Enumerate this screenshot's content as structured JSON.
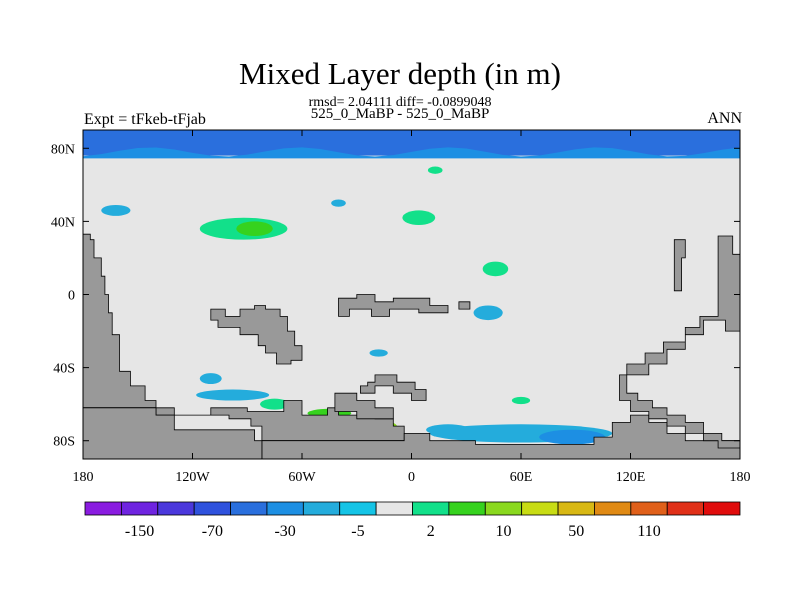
{
  "chart_data": {
    "type": "heatmap",
    "title": "Mixed Layer depth (in m)",
    "stats_line": "rmsd= 2.04111 diff= -0.0899048",
    "subtitle": "525_0_MaBP - 525_0_MaBP",
    "left_label": "Expt = tFkeb-tFjab",
    "right_label": "ANN",
    "xlim": [
      -180,
      180
    ],
    "ylim": [
      -90,
      90
    ],
    "x_ticks": [
      {
        "value": -180,
        "label": "180"
      },
      {
        "value": -120,
        "label": "120W"
      },
      {
        "value": -60,
        "label": "60W"
      },
      {
        "value": 0,
        "label": "0"
      },
      {
        "value": 60,
        "label": "60E"
      },
      {
        "value": 120,
        "label": "120E"
      },
      {
        "value": 180,
        "label": "180"
      }
    ],
    "y_ticks": [
      {
        "value": 80,
        "label": "80N"
      },
      {
        "value": 40,
        "label": "40N"
      },
      {
        "value": 0,
        "label": "0"
      },
      {
        "value": -40,
        "label": "40S"
      },
      {
        "value": -80,
        "label": "80S"
      }
    ],
    "colorbar": {
      "colors": [
        "#8a1ce0",
        "#6f24e0",
        "#4b38dc",
        "#2f52dd",
        "#2a6fdd",
        "#1d8fe3",
        "#24acdc",
        "#15c4e6",
        "#e6e6e6",
        "#12e08a",
        "#36d21e",
        "#8ad81e",
        "#c8dc14",
        "#d8b814",
        "#e08a14",
        "#e0601a",
        "#e03018",
        "#e00c0c"
      ],
      "label_positions": [
        1,
        3,
        5,
        7,
        9,
        11,
        13,
        15
      ],
      "labels": [
        "-150",
        "-70",
        "-30",
        "-5",
        "2",
        "10",
        "50",
        "110"
      ]
    },
    "background_value_color": "#e6e6e6",
    "land_color": "#999999",
    "regions": [
      {
        "kind": "band",
        "lat_range": [
          76,
          90
        ],
        "lon_range": [
          -180,
          180
        ],
        "color": "#2a6fdd",
        "fill_color": "#1d8fe3"
      },
      {
        "kind": "blob",
        "center": [
          -92,
          36
        ],
        "radius": [
          24,
          6
        ],
        "color": "#12e08a"
      },
      {
        "kind": "blob",
        "center": [
          -86,
          36
        ],
        "radius": [
          10,
          4
        ],
        "color": "#36d21e"
      },
      {
        "kind": "blob",
        "center": [
          -162,
          46
        ],
        "radius": [
          8,
          3
        ],
        "color": "#24acdc"
      },
      {
        "kind": "blob",
        "center": [
          4,
          42
        ],
        "radius": [
          9,
          4
        ],
        "color": "#12e08a"
      },
      {
        "kind": "blob",
        "center": [
          13,
          68
        ],
        "radius": [
          4,
          2
        ],
        "color": "#12e08a"
      },
      {
        "kind": "blob",
        "center": [
          46,
          14
        ],
        "radius": [
          7,
          4
        ],
        "color": "#12e08a"
      },
      {
        "kind": "blob",
        "center": [
          -40,
          50
        ],
        "radius": [
          4,
          2
        ],
        "color": "#24acdc"
      },
      {
        "kind": "blob",
        "center": [
          42,
          -10
        ],
        "radius": [
          8,
          4
        ],
        "color": "#24acdc"
      },
      {
        "kind": "blob",
        "center": [
          -18,
          -32
        ],
        "radius": [
          5,
          2
        ],
        "color": "#24acdc"
      },
      {
        "kind": "blob",
        "center": [
          -110,
          -46
        ],
        "radius": [
          6,
          3
        ],
        "color": "#24acdc"
      },
      {
        "kind": "blob",
        "center": [
          -98,
          -55
        ],
        "radius": [
          20,
          3
        ],
        "color": "#24acdc"
      },
      {
        "kind": "blob",
        "center": [
          -75,
          -60
        ],
        "radius": [
          8,
          3
        ],
        "color": "#12e08a"
      },
      {
        "kind": "blob",
        "center": [
          -38,
          -72
        ],
        "radius": [
          30,
          5
        ],
        "color": "#8ad81e"
      },
      {
        "kind": "blob",
        "center": [
          -45,
          -65
        ],
        "radius": [
          12,
          2.5
        ],
        "color": "#36d21e"
      },
      {
        "kind": "blob",
        "center": [
          60,
          -76
        ],
        "radius": [
          50,
          5
        ],
        "color": "#24acdc"
      },
      {
        "kind": "blob",
        "center": [
          88,
          -78
        ],
        "radius": [
          18,
          4
        ],
        "color": "#1d8fe3"
      },
      {
        "kind": "blob",
        "center": [
          20,
          -74
        ],
        "radius": [
          12,
          3
        ],
        "color": "#24acdc"
      },
      {
        "kind": "blob",
        "center": [
          60,
          -58
        ],
        "radius": [
          5,
          2
        ],
        "color": "#12e08a"
      }
    ],
    "land": [
      {
        "name": "western-continent",
        "points": [
          [
            -180,
            33
          ],
          [
            -176,
            33
          ],
          [
            -176,
            30
          ],
          [
            -174,
            30
          ],
          [
            -174,
            20
          ],
          [
            -170,
            20
          ],
          [
            -170,
            10
          ],
          [
            -168,
            10
          ],
          [
            -168,
            0
          ],
          [
            -166,
            0
          ],
          [
            -166,
            -10
          ],
          [
            -164,
            -10
          ],
          [
            -164,
            -22
          ],
          [
            -160,
            -22
          ],
          [
            -160,
            -42
          ],
          [
            -154,
            -42
          ],
          [
            -154,
            -50
          ],
          [
            -146,
            -50
          ],
          [
            -146,
            -58
          ],
          [
            -140,
            -58
          ],
          [
            -140,
            -62
          ],
          [
            -180,
            -62
          ]
        ]
      },
      {
        "name": "south-block-left",
        "points": [
          [
            -180,
            -62
          ],
          [
            -140,
            -62
          ],
          [
            -140,
            -66
          ],
          [
            -110,
            -66
          ],
          [
            -110,
            -62
          ],
          [
            -90,
            -62
          ],
          [
            -90,
            -64
          ],
          [
            -70,
            -64
          ],
          [
            -70,
            -58
          ],
          [
            -60,
            -58
          ],
          [
            -60,
            -66
          ],
          [
            -46,
            -66
          ],
          [
            -46,
            -62
          ],
          [
            -40,
            -62
          ],
          [
            -40,
            -66
          ],
          [
            -30,
            -66
          ],
          [
            -30,
            -64
          ],
          [
            -20,
            -64
          ],
          [
            -20,
            -68
          ],
          [
            -10,
            -68
          ],
          [
            -10,
            -72
          ],
          [
            -4,
            -72
          ],
          [
            -4,
            -80
          ],
          [
            -82,
            -80
          ],
          [
            -82,
            -72
          ],
          [
            -88,
            -72
          ],
          [
            -88,
            -68
          ],
          [
            -100,
            -68
          ],
          [
            -100,
            -66
          ],
          [
            -130,
            -66
          ],
          [
            -130,
            -62
          ],
          [
            -180,
            -62
          ]
        ]
      },
      {
        "name": "south-block-right",
        "points": [
          [
            -82,
            -80
          ],
          [
            -4,
            -80
          ],
          [
            -4,
            -76
          ],
          [
            10,
            -76
          ],
          [
            10,
            -80
          ],
          [
            35,
            -80
          ],
          [
            35,
            -82
          ],
          [
            100,
            -82
          ],
          [
            100,
            -78
          ],
          [
            110,
            -78
          ],
          [
            110,
            -70
          ],
          [
            120,
            -70
          ],
          [
            120,
            -66
          ],
          [
            130,
            -66
          ],
          [
            130,
            -70
          ],
          [
            140,
            -70
          ],
          [
            140,
            -76
          ],
          [
            150,
            -76
          ],
          [
            150,
            -80
          ],
          [
            180,
            -80
          ],
          [
            180,
            -90
          ],
          [
            -82,
            -90
          ]
        ]
      },
      {
        "name": "antarctic-base",
        "points": [
          [
            -180,
            -62
          ],
          [
            -180,
            -90
          ],
          [
            -82,
            -90
          ],
          [
            -82,
            -80
          ],
          [
            -86,
            -80
          ],
          [
            -86,
            -74
          ],
          [
            -130,
            -74
          ],
          [
            -130,
            -66
          ],
          [
            -140,
            -66
          ],
          [
            -140,
            -62
          ]
        ]
      },
      {
        "name": "central-island",
        "points": [
          [
            -110,
            -8
          ],
          [
            -102,
            -8
          ],
          [
            -102,
            -12
          ],
          [
            -94,
            -12
          ],
          [
            -94,
            -8
          ],
          [
            -86,
            -8
          ],
          [
            -86,
            -6
          ],
          [
            -80,
            -6
          ],
          [
            -80,
            -8
          ],
          [
            -72,
            -8
          ],
          [
            -72,
            -12
          ],
          [
            -68,
            -12
          ],
          [
            -68,
            -20
          ],
          [
            -64,
            -20
          ],
          [
            -64,
            -28
          ],
          [
            -60,
            -28
          ],
          [
            -60,
            -36
          ],
          [
            -66,
            -36
          ],
          [
            -66,
            -38
          ],
          [
            -74,
            -38
          ],
          [
            -74,
            -32
          ],
          [
            -80,
            -32
          ],
          [
            -80,
            -28
          ],
          [
            -84,
            -28
          ],
          [
            -84,
            -22
          ],
          [
            -94,
            -22
          ],
          [
            -94,
            -18
          ],
          [
            -106,
            -18
          ],
          [
            -106,
            -14
          ],
          [
            -110,
            -14
          ]
        ]
      },
      {
        "name": "south-island-upper",
        "points": [
          [
            -20,
            -44
          ],
          [
            -8,
            -44
          ],
          [
            -8,
            -48
          ],
          [
            2,
            -48
          ],
          [
            2,
            -52
          ],
          [
            8,
            -52
          ],
          [
            8,
            -58
          ],
          [
            0,
            -58
          ],
          [
            0,
            -54
          ],
          [
            -10,
            -54
          ],
          [
            -10,
            -50
          ],
          [
            -20,
            -50
          ],
          [
            -20,
            -54
          ],
          [
            -28,
            -54
          ],
          [
            -28,
            -50
          ],
          [
            -24,
            -50
          ],
          [
            -24,
            -48
          ],
          [
            -20,
            -48
          ]
        ]
      },
      {
        "name": "south-island-lower",
        "points": [
          [
            -42,
            -54
          ],
          [
            -30,
            -54
          ],
          [
            -30,
            -58
          ],
          [
            -20,
            -58
          ],
          [
            -20,
            -62
          ],
          [
            -10,
            -62
          ],
          [
            -10,
            -68
          ],
          [
            -30,
            -68
          ],
          [
            -30,
            -64
          ],
          [
            -42,
            -64
          ]
        ]
      },
      {
        "name": "equatorial-strip",
        "points": [
          [
            -40,
            -2
          ],
          [
            -30,
            -2
          ],
          [
            -30,
            0
          ],
          [
            -20,
            0
          ],
          [
            -20,
            -4
          ],
          [
            -10,
            -4
          ],
          [
            -10,
            -2
          ],
          [
            10,
            -2
          ],
          [
            10,
            -6
          ],
          [
            20,
            -6
          ],
          [
            20,
            -10
          ],
          [
            4,
            -10
          ],
          [
            4,
            -8
          ],
          [
            -12,
            -8
          ],
          [
            -12,
            -12
          ],
          [
            -22,
            -12
          ],
          [
            -22,
            -8
          ],
          [
            -34,
            -8
          ],
          [
            -34,
            -12
          ],
          [
            -40,
            -12
          ]
        ]
      },
      {
        "name": "equatorial-islet",
        "points": [
          [
            26,
            -4
          ],
          [
            32,
            -4
          ],
          [
            32,
            -8
          ],
          [
            26,
            -8
          ]
        ]
      },
      {
        "name": "east-peninsula-1",
        "points": [
          [
            144,
            30
          ],
          [
            150,
            30
          ],
          [
            150,
            20
          ],
          [
            148,
            20
          ],
          [
            148,
            2
          ],
          [
            144,
            2
          ]
        ]
      },
      {
        "name": "east-peninsula-2",
        "points": [
          [
            168,
            32
          ],
          [
            176,
            32
          ],
          [
            176,
            22
          ],
          [
            180,
            22
          ],
          [
            180,
            -20
          ],
          [
            172,
            -20
          ],
          [
            172,
            -14
          ],
          [
            160,
            -14
          ],
          [
            160,
            -22
          ],
          [
            150,
            -22
          ],
          [
            150,
            -30
          ],
          [
            140,
            -30
          ],
          [
            140,
            -38
          ],
          [
            130,
            -38
          ],
          [
            130,
            -44
          ],
          [
            118,
            -44
          ],
          [
            118,
            -54
          ],
          [
            124,
            -54
          ],
          [
            124,
            -58
          ],
          [
            132,
            -58
          ],
          [
            132,
            -62
          ],
          [
            140,
            -62
          ],
          [
            140,
            -66
          ],
          [
            150,
            -66
          ],
          [
            150,
            -70
          ],
          [
            160,
            -70
          ],
          [
            160,
            -76
          ],
          [
            170,
            -76
          ],
          [
            170,
            -80
          ],
          [
            180,
            -80
          ],
          [
            180,
            -84
          ],
          [
            168,
            -84
          ],
          [
            168,
            -80
          ],
          [
            160,
            -80
          ],
          [
            160,
            -76
          ],
          [
            150,
            -76
          ],
          [
            150,
            -72
          ],
          [
            140,
            -72
          ],
          [
            140,
            -68
          ],
          [
            130,
            -68
          ],
          [
            130,
            -64
          ],
          [
            120,
            -64
          ],
          [
            120,
            -58
          ],
          [
            114,
            -58
          ],
          [
            114,
            -44
          ],
          [
            118,
            -44
          ],
          [
            118,
            -38
          ],
          [
            128,
            -38
          ],
          [
            128,
            -32
          ],
          [
            138,
            -32
          ],
          [
            138,
            -26
          ],
          [
            150,
            -26
          ],
          [
            150,
            -18
          ],
          [
            158,
            -18
          ],
          [
            158,
            -12
          ],
          [
            168,
            -12
          ],
          [
            168,
            0
          ]
        ]
      }
    ]
  }
}
